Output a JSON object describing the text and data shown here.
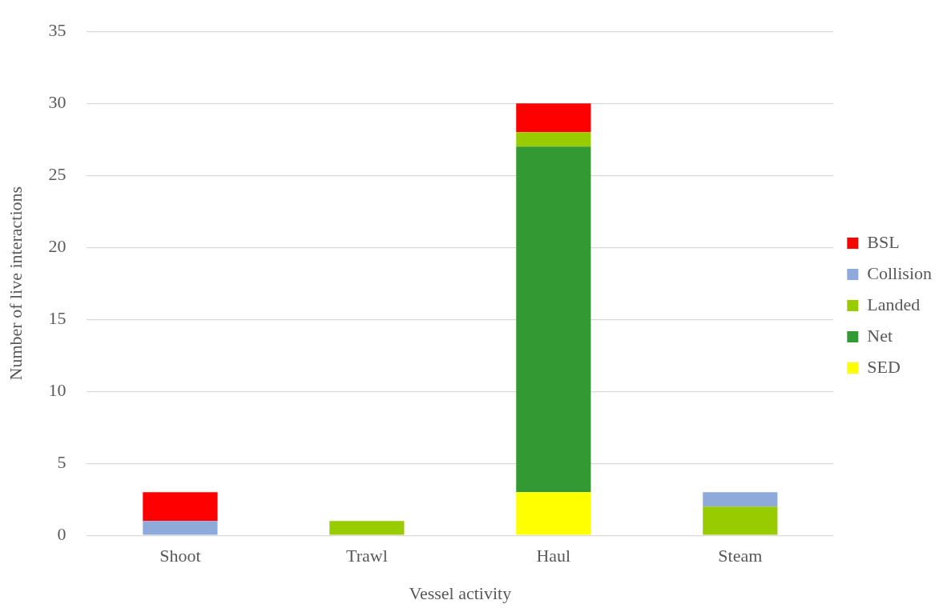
{
  "chart_data": {
    "type": "bar",
    "xlabel": "Vessel activity",
    "ylabel": "Number of live interactions",
    "categories": [
      "Shoot",
      "Trawl",
      "Haul",
      "Steam"
    ],
    "series": [
      {
        "name": "SED",
        "color": "#ffff00",
        "values": [
          null,
          null,
          3,
          null
        ]
      },
      {
        "name": "Net",
        "color": "#339933",
        "values": [
          null,
          null,
          24,
          null
        ]
      },
      {
        "name": "Landed",
        "color": "#99cc00",
        "values": [
          null,
          1,
          1,
          2
        ]
      },
      {
        "name": "Collision",
        "color": "#8eaadb",
        "values": [
          1,
          null,
          null,
          1
        ]
      },
      {
        "name": "BSL",
        "color": "#ff0000",
        "values": [
          2,
          null,
          2,
          null
        ]
      }
    ],
    "stacked": true,
    "ylim": [
      0,
      35
    ],
    "yticks": [
      0,
      5,
      10,
      15,
      20,
      25,
      30,
      35
    ],
    "grid": "y",
    "legend": "right"
  }
}
